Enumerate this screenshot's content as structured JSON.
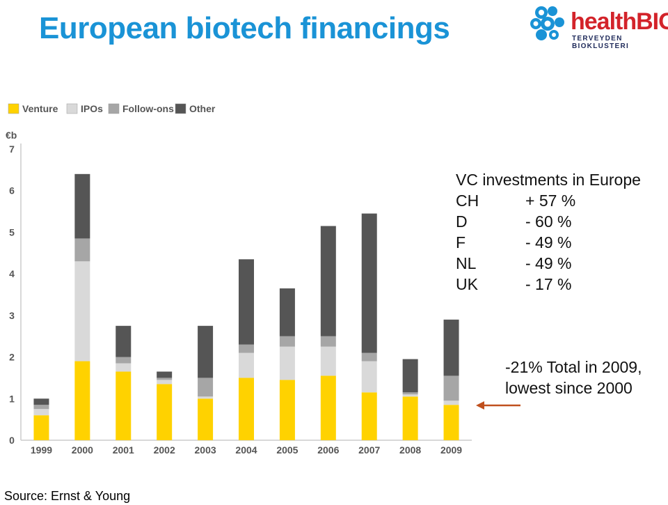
{
  "header": {
    "title": "European biotech financings",
    "logo": {
      "word_health": "health",
      "word_bio": "BIO",
      "subtitle": "TERVEYDEN BIOKLUSTERI",
      "brand_red": "#d3232a",
      "brand_blue": "#1a93d6"
    }
  },
  "chart_data": {
    "type": "bar",
    "stacked": true,
    "unit_label": "€b",
    "categories": [
      "1999",
      "2000",
      "2001",
      "2002",
      "2003",
      "2004",
      "2005",
      "2006",
      "2007",
      "2008",
      "2009"
    ],
    "series": [
      {
        "name": "Venture",
        "color": "#ffd200",
        "values": [
          0.6,
          1.9,
          1.65,
          1.35,
          1.0,
          1.5,
          1.45,
          1.55,
          1.15,
          1.05,
          0.85
        ]
      },
      {
        "name": "IPOs",
        "color": "#d9d9d9",
        "values": [
          0.15,
          2.4,
          0.2,
          0.1,
          0.05,
          0.6,
          0.8,
          0.7,
          0.75,
          0.05,
          0.1
        ]
      },
      {
        "name": "Follow-ons",
        "color": "#a6a6a6",
        "values": [
          0.1,
          0.55,
          0.15,
          0.05,
          0.45,
          0.2,
          0.25,
          0.25,
          0.2,
          0.05,
          0.6
        ]
      },
      {
        "name": "Other",
        "color": "#555555",
        "values": [
          0.15,
          1.55,
          0.75,
          0.15,
          1.25,
          2.05,
          1.15,
          2.65,
          3.35,
          0.8,
          1.35
        ]
      }
    ],
    "ylim": [
      0,
      7
    ],
    "yticks": [
      0,
      1,
      2,
      3,
      4,
      5,
      6,
      7
    ],
    "grid": false,
    "legend_position": "top-left",
    "xlabel": "",
    "ylabel": "€b"
  },
  "annotations": {
    "vc_title": "VC investments in Europe",
    "vc_rows": [
      {
        "country": "CH",
        "change": "+ 57 %"
      },
      {
        "country": "D",
        "change": "- 60 %"
      },
      {
        "country": "F",
        "change": "- 49 %"
      },
      {
        "country": "NL",
        "change": "- 49 %"
      },
      {
        "country": "UK",
        "change": "- 17 %"
      }
    ],
    "total_note_line1": "-21% Total in 2009,",
    "total_note_line2": "lowest since 2000",
    "arrow_color": "#c0501e"
  },
  "footer": {
    "source": "Source: Ernst & Young"
  }
}
